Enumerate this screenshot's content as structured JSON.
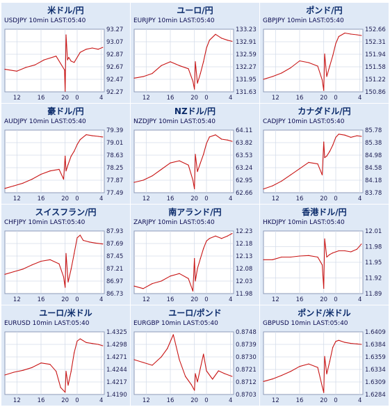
{
  "chart_data": [
    {
      "type": "line",
      "title": "米ドル/円",
      "subtitle": "USDJPY 10min LAST:05:40",
      "yticks": [
        "93.27",
        "93.07",
        "92.87",
        "92.67",
        "92.47",
        "92.27"
      ],
      "ylim": [
        92.27,
        93.27
      ],
      "xticks": [
        "12",
        "16",
        "20",
        "0",
        "4"
      ],
      "x": [
        0,
        4,
        7,
        10,
        13,
        17,
        19.8,
        20,
        20.3,
        20.8,
        21.2,
        22,
        23,
        24,
        25,
        27,
        29,
        31,
        32.5
      ],
      "series": [
        {
          "values": [
            92.63,
            92.6,
            92.66,
            92.7,
            92.78,
            92.84,
            92.62,
            92.28,
            93.18,
            92.78,
            92.82,
            92.76,
            92.74,
            92.82,
            92.9,
            92.95,
            92.97,
            92.95,
            92.98
          ]
        }
      ]
    },
    {
      "type": "line",
      "title": "ユーロ/円",
      "subtitle": "EURJPY 10min LAST:05:40",
      "yticks": [
        "133.23",
        "132.91",
        "132.59",
        "132.27",
        "131.95",
        "131.63"
      ],
      "ylim": [
        131.63,
        133.23
      ],
      "xticks": [
        "12",
        "16",
        "20",
        "0",
        "4"
      ],
      "x": [
        0,
        3,
        6,
        9,
        12,
        15,
        18,
        19.5,
        20,
        20.3,
        21,
        22,
        23,
        24,
        25,
        27,
        29,
        31,
        32.5
      ],
      "series": [
        {
          "values": [
            131.98,
            132.02,
            132.1,
            132.3,
            132.4,
            132.3,
            132.22,
            131.9,
            131.7,
            132.4,
            131.85,
            132.1,
            132.4,
            132.75,
            132.95,
            133.1,
            133.0,
            132.95,
            132.92
          ]
        }
      ]
    },
    {
      "type": "line",
      "title": "ポンド/円",
      "subtitle": "GBPJPY 10min LAST:05:40",
      "yticks": [
        "152.66",
        "152.31",
        "151.94",
        "151.58",
        "151.22",
        "150.86"
      ],
      "ylim": [
        150.86,
        152.66
      ],
      "xticks": [
        "12",
        "16",
        "20",
        "0",
        "4"
      ],
      "x": [
        0,
        3,
        6,
        9,
        12,
        15,
        18,
        19.5,
        20,
        20.3,
        21,
        22,
        23,
        24,
        25,
        27,
        29,
        31,
        32.5
      ],
      "series": [
        {
          "values": [
            151.22,
            151.3,
            151.4,
            151.55,
            151.75,
            151.7,
            151.6,
            151.2,
            150.9,
            151.95,
            151.3,
            151.6,
            151.9,
            152.25,
            152.45,
            152.55,
            152.52,
            152.5,
            152.48
          ]
        }
      ]
    },
    {
      "type": "line",
      "title": "豪ドル/円",
      "subtitle": "AUDJPY 10min LAST:05:40",
      "yticks": [
        "79.39",
        "79.01",
        "78.63",
        "78.25",
        "77.87",
        "77.49"
      ],
      "ylim": [
        77.49,
        79.39
      ],
      "xticks": [
        "12",
        "16",
        "20",
        "0",
        "4"
      ],
      "x": [
        0,
        3,
        6,
        9,
        12,
        15,
        18,
        19.5,
        20,
        20.3,
        21,
        22,
        23,
        24,
        25,
        27,
        29,
        31,
        32.5
      ],
      "series": [
        {
          "values": [
            77.62,
            77.7,
            77.78,
            77.9,
            78.05,
            78.15,
            78.2,
            77.9,
            78.6,
            78.15,
            78.35,
            78.6,
            78.75,
            78.95,
            79.1,
            79.25,
            79.22,
            79.2,
            79.18
          ]
        }
      ]
    },
    {
      "type": "line",
      "title": "NZドル/円",
      "subtitle": "NZDJPY 10min LAST:05:40",
      "yticks": [
        "64.11",
        "63.82",
        "63.53",
        "63.24",
        "62.95",
        "62.66"
      ],
      "ylim": [
        62.66,
        64.11
      ],
      "xticks": [
        "12",
        "16",
        "20",
        "0",
        "4"
      ],
      "x": [
        0,
        3,
        6,
        9,
        12,
        15,
        18,
        19.5,
        20,
        20.3,
        21,
        22,
        23,
        24,
        25,
        27,
        29,
        31,
        32.5
      ],
      "series": [
        {
          "values": [
            62.9,
            62.95,
            63.05,
            63.2,
            63.35,
            63.4,
            63.3,
            62.95,
            62.75,
            63.55,
            63.15,
            63.35,
            63.55,
            63.8,
            63.95,
            64.0,
            63.9,
            63.88,
            63.85
          ]
        }
      ]
    },
    {
      "type": "line",
      "title": "カナダドル/円",
      "subtitle": "CADJPY 10min LAST:05:40",
      "yticks": [
        "85.78",
        "85.38",
        "84.98",
        "84.58",
        "84.18",
        "83.78"
      ],
      "ylim": [
        83.78,
        85.78
      ],
      "xticks": [
        "12",
        "16",
        "20",
        "0",
        "4"
      ],
      "x": [
        0,
        3,
        6,
        9,
        12,
        15,
        18,
        19.5,
        20,
        20.3,
        21,
        22,
        23,
        24,
        25,
        27,
        29,
        31,
        32.5
      ],
      "series": [
        {
          "values": [
            83.9,
            84.0,
            84.15,
            84.35,
            84.55,
            84.75,
            84.7,
            84.35,
            85.4,
            84.9,
            84.95,
            85.1,
            85.3,
            85.55,
            85.65,
            85.62,
            85.55,
            85.6,
            85.58
          ]
        }
      ]
    },
    {
      "type": "line",
      "title": "スイスフラン/円",
      "subtitle": "CHFJPY 10min LAST:05:40",
      "yticks": [
        "87.93",
        "87.69",
        "87.45",
        "87.21",
        "86.97",
        "86.73"
      ],
      "ylim": [
        86.73,
        87.93
      ],
      "xticks": [
        "12",
        "16",
        "20",
        "0",
        "4"
      ],
      "x": [
        0,
        3,
        6,
        9,
        12,
        15,
        18,
        19.5,
        20,
        20.3,
        21,
        22,
        23,
        24,
        25,
        26,
        28,
        30,
        32.5
      ],
      "series": [
        {
          "values": [
            87.1,
            87.15,
            87.2,
            87.28,
            87.35,
            87.38,
            87.3,
            87.05,
            86.85,
            87.5,
            86.95,
            87.2,
            87.5,
            87.8,
            87.85,
            87.75,
            87.72,
            87.7,
            87.68
          ]
        }
      ]
    },
    {
      "type": "line",
      "title": "南アランド/円",
      "subtitle": "ZARJPY 10min LAST:05:40",
      "yticks": [
        "12.23",
        "12.18",
        "12.13",
        "12.08",
        "12.03",
        "11.98"
      ],
      "ylim": [
        11.98,
        12.23
      ],
      "xticks": [
        "12",
        "16",
        "20",
        "0",
        "4"
      ],
      "x": [
        0,
        3,
        6,
        9,
        12,
        15,
        18,
        19.5,
        20,
        20.3,
        21,
        22,
        23,
        24,
        25,
        27,
        29,
        31,
        32.5
      ],
      "series": [
        {
          "values": [
            12.01,
            12.0,
            12.02,
            12.03,
            12.05,
            12.06,
            12.04,
            11.99,
            12.12,
            12.03,
            12.08,
            12.12,
            12.16,
            12.19,
            12.2,
            12.21,
            12.2,
            12.21,
            12.22
          ]
        }
      ]
    },
    {
      "type": "line",
      "title": "香港ドル/円",
      "subtitle": "HKDJPY 10min LAST:05:40",
      "yticks": [
        "12.01",
        "11.98",
        "11.95",
        "11.92",
        "11.89"
      ],
      "ylim": [
        11.89,
        12.01
      ],
      "xticks": [
        "12",
        "16",
        "20",
        "0",
        "4"
      ],
      "x": [
        0,
        3,
        6,
        9,
        12,
        15,
        18,
        19.5,
        20,
        20.3,
        21,
        22,
        23,
        24,
        25,
        27,
        29,
        31,
        32.5
      ],
      "series": [
        {
          "values": [
            11.955,
            11.955,
            11.96,
            11.96,
            11.962,
            11.963,
            11.96,
            11.945,
            11.9,
            11.995,
            11.96,
            11.965,
            11.968,
            11.97,
            11.972,
            11.972,
            11.97,
            11.975,
            11.985
          ]
        }
      ]
    },
    {
      "type": "line",
      "title": "ユーロ/米ドル",
      "subtitle": "EURUSD 10min LAST:05:40",
      "yticks": [
        "1.4325",
        "1.4298",
        "1.4271",
        "1.4244",
        "1.4217",
        "1.4190"
      ],
      "ylim": [
        1.419,
        1.4325
      ],
      "xticks": [
        "12",
        "16",
        "20",
        "0",
        "4"
      ],
      "x": [
        0,
        3,
        6,
        9,
        12,
        15,
        17,
        18.5,
        20,
        20.3,
        21,
        22,
        23,
        24,
        25,
        27,
        29,
        31,
        32.5
      ],
      "series": [
        {
          "values": [
            1.4232,
            1.4238,
            1.4242,
            1.4248,
            1.4258,
            1.4255,
            1.424,
            1.4205,
            1.4195,
            1.424,
            1.421,
            1.424,
            1.428,
            1.4305,
            1.431,
            1.4302,
            1.43,
            1.4298,
            1.4295
          ]
        }
      ]
    },
    {
      "type": "line",
      "title": "ユーロ/ポンド",
      "subtitle": "EURGBP 10min LAST:05:40",
      "yticks": [
        "0.8748",
        "0.8739",
        "0.8730",
        "0.8721",
        "0.8712",
        "0.8703"
      ],
      "ylim": [
        0.8703,
        0.8748
      ],
      "xticks": [
        "12",
        "16",
        "20",
        "0",
        "4"
      ],
      "x": [
        0,
        3,
        6,
        9,
        11,
        13,
        15,
        17,
        19,
        20,
        20.3,
        21,
        22,
        23,
        24,
        26,
        28,
        30,
        32.5
      ],
      "series": [
        {
          "values": [
            0.8728,
            0.8726,
            0.8724,
            0.873,
            0.8736,
            0.8746,
            0.8728,
            0.8716,
            0.871,
            0.8706,
            0.8718,
            0.8712,
            0.8722,
            0.8732,
            0.872,
            0.8714,
            0.872,
            0.8718,
            0.8716
          ]
        }
      ]
    },
    {
      "type": "line",
      "title": "ポンド/米ドル",
      "subtitle": "GBPUSD 10min LAST:05:40",
      "yticks": [
        "1.6409",
        "1.6384",
        "1.6359",
        "1.6334",
        "1.6309",
        "1.6284"
      ],
      "ylim": [
        1.6284,
        1.6409
      ],
      "xticks": [
        "12",
        "16",
        "20",
        "0",
        "4"
      ],
      "x": [
        0,
        3,
        6,
        9,
        12,
        15,
        18,
        19.5,
        20,
        20.3,
        21,
        22,
        23,
        24,
        25,
        27,
        29,
        31,
        32.5
      ],
      "series": [
        {
          "values": [
            1.631,
            1.6315,
            1.6322,
            1.633,
            1.634,
            1.6345,
            1.6338,
            1.63,
            1.6288,
            1.636,
            1.6325,
            1.635,
            1.6378,
            1.639,
            1.6392,
            1.6388,
            1.6386,
            1.6385,
            1.6384
          ]
        }
      ]
    }
  ]
}
